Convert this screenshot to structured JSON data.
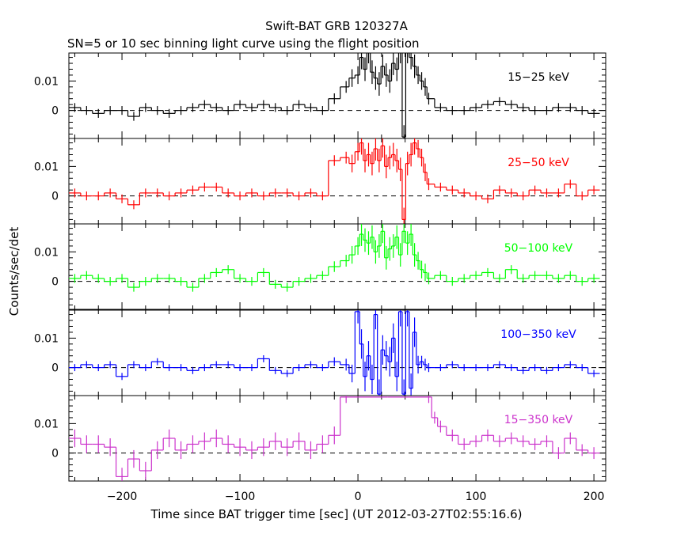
{
  "title": "Swift-BAT GRB 120327A",
  "subtitle": "SN=5 or 10 sec binning light curve using the flight position",
  "chart_data": {
    "type": "line",
    "title": "Swift-BAT GRB 120327A",
    "subtitle": "SN=5 or 10 sec binning light curve using the flight position",
    "xlabel": "Time since BAT trigger time [sec] (UT 2012-03-27T02:55:16.6)",
    "ylabel": "Counts/sec/det",
    "xlim": [
      -245,
      210
    ],
    "ylim": [
      -0.0095,
      0.0195
    ],
    "x_ticks": [
      -200,
      -100,
      0,
      100,
      200
    ],
    "x_tick_labels": [
      "−200",
      "−100",
      "0",
      "100",
      "200"
    ],
    "y_ticks": [
      0,
      0.01
    ],
    "y_tick_labels": [
      "0",
      "0.01"
    ],
    "zero_line": "dashed",
    "series": [
      {
        "name": "15−25 keV",
        "color": "#000000",
        "x": [
          -240,
          -230,
          -220,
          -210,
          -200,
          -190,
          -180,
          -170,
          -160,
          -150,
          -140,
          -130,
          -120,
          -110,
          -100,
          -90,
          -80,
          -70,
          -60,
          -50,
          -40,
          -30,
          -20,
          -10,
          -5,
          0,
          3,
          6,
          9,
          12,
          15,
          18,
          21,
          24,
          27,
          30,
          33,
          36,
          39,
          42,
          45,
          48,
          51,
          54,
          57,
          60,
          70,
          80,
          90,
          100,
          110,
          120,
          130,
          140,
          150,
          160,
          170,
          180,
          190,
          200
        ],
        "y": [
          0.001,
          0.0,
          -0.001,
          0.0,
          0.0,
          -0.002,
          0.001,
          0.0,
          -0.001,
          0.0,
          0.001,
          0.002,
          0.001,
          0.0,
          0.002,
          0.001,
          0.002,
          0.001,
          0.0,
          0.002,
          0.001,
          0.0,
          0.004,
          0.008,
          0.011,
          0.012,
          0.018,
          0.014,
          0.02,
          0.013,
          0.011,
          0.009,
          0.015,
          0.012,
          0.01,
          0.016,
          0.014,
          0.02,
          -0.009,
          0.02,
          0.018,
          0.015,
          0.012,
          0.01,
          0.008,
          0.004,
          0.001,
          0.0,
          0.0,
          0.001,
          0.002,
          0.003,
          0.002,
          0.001,
          0.0,
          0.0,
          0.001,
          0.001,
          0.0,
          -0.001
        ],
        "err": [
          0.0015,
          0.0015,
          0.0015,
          0.0015,
          0.0015,
          0.0015,
          0.0015,
          0.0015,
          0.0015,
          0.0015,
          0.0015,
          0.0015,
          0.0015,
          0.0015,
          0.0015,
          0.0015,
          0.0015,
          0.0015,
          0.0015,
          0.0015,
          0.0015,
          0.0015,
          0.0018,
          0.002,
          0.003,
          0.003,
          0.004,
          0.004,
          0.004,
          0.004,
          0.004,
          0.004,
          0.004,
          0.004,
          0.004,
          0.004,
          0.004,
          0.004,
          0.004,
          0.004,
          0.004,
          0.004,
          0.003,
          0.003,
          0.003,
          0.002,
          0.0015,
          0.0015,
          0.0015,
          0.0015,
          0.0015,
          0.0015,
          0.0015,
          0.0015,
          0.0015,
          0.0015,
          0.0015,
          0.0015,
          0.0015,
          0.0015
        ]
      },
      {
        "name": "25−50 keV",
        "color": "#ff0000",
        "x": [
          -240,
          -230,
          -220,
          -210,
          -200,
          -190,
          -180,
          -170,
          -160,
          -150,
          -140,
          -130,
          -120,
          -110,
          -100,
          -90,
          -80,
          -70,
          -60,
          -50,
          -40,
          -30,
          -20,
          -10,
          -5,
          0,
          3,
          6,
          9,
          12,
          15,
          18,
          21,
          24,
          27,
          30,
          33,
          36,
          39,
          42,
          45,
          48,
          51,
          54,
          57,
          60,
          70,
          80,
          90,
          100,
          110,
          120,
          130,
          140,
          150,
          160,
          170,
          180,
          190,
          200
        ],
        "y": [
          0.001,
          0.0,
          0.0,
          0.001,
          -0.001,
          -0.003,
          0.001,
          0.001,
          0.0,
          0.001,
          0.002,
          0.003,
          0.003,
          0.001,
          0.0,
          0.001,
          0.0,
          0.001,
          0.001,
          0.0,
          0.001,
          0.0,
          0.012,
          0.013,
          0.011,
          0.015,
          0.018,
          0.012,
          0.014,
          0.011,
          0.016,
          0.012,
          0.017,
          0.01,
          0.013,
          0.014,
          0.012,
          0.009,
          -0.008,
          0.011,
          0.014,
          0.018,
          0.016,
          0.013,
          0.008,
          0.004,
          0.003,
          0.002,
          0.001,
          0.0,
          -0.001,
          0.002,
          0.001,
          0.0,
          0.002,
          0.001,
          0.001,
          0.004,
          0.0,
          0.002
        ],
        "err": [
          0.0015,
          0.0015,
          0.0015,
          0.0015,
          0.0015,
          0.0015,
          0.0015,
          0.0015,
          0.0015,
          0.0015,
          0.0015,
          0.0015,
          0.0015,
          0.0015,
          0.0015,
          0.0015,
          0.0015,
          0.0015,
          0.0015,
          0.0015,
          0.0015,
          0.0015,
          0.0018,
          0.002,
          0.003,
          0.003,
          0.004,
          0.004,
          0.004,
          0.004,
          0.004,
          0.004,
          0.004,
          0.004,
          0.004,
          0.004,
          0.004,
          0.004,
          0.004,
          0.004,
          0.004,
          0.004,
          0.003,
          0.003,
          0.003,
          0.002,
          0.0015,
          0.0015,
          0.0015,
          0.0015,
          0.0015,
          0.0015,
          0.0015,
          0.0015,
          0.0015,
          0.0015,
          0.0015,
          0.0015,
          0.0015,
          0.0015
        ]
      },
      {
        "name": "50−100 keV",
        "color": "#00ff00",
        "x": [
          -240,
          -230,
          -220,
          -210,
          -200,
          -190,
          -180,
          -170,
          -160,
          -150,
          -140,
          -130,
          -120,
          -110,
          -100,
          -90,
          -80,
          -70,
          -60,
          -50,
          -40,
          -30,
          -20,
          -10,
          -5,
          0,
          3,
          6,
          9,
          12,
          15,
          18,
          21,
          24,
          27,
          30,
          33,
          36,
          39,
          42,
          45,
          48,
          51,
          54,
          57,
          60,
          70,
          80,
          90,
          100,
          110,
          120,
          130,
          140,
          150,
          160,
          170,
          180,
          190,
          200
        ],
        "y": [
          0.001,
          0.002,
          0.001,
          0.0,
          0.001,
          -0.002,
          0.0,
          0.001,
          0.001,
          0.0,
          -0.002,
          0.001,
          0.003,
          0.004,
          0.001,
          0.0,
          0.003,
          -0.001,
          -0.002,
          0.0,
          0.001,
          0.002,
          0.005,
          0.007,
          0.009,
          0.012,
          0.016,
          0.014,
          0.013,
          0.015,
          0.01,
          0.012,
          0.017,
          0.008,
          0.011,
          0.012,
          0.015,
          0.009,
          0.017,
          0.013,
          0.016,
          0.009,
          0.007,
          0.004,
          0.003,
          0.001,
          0.002,
          0.0,
          0.001,
          0.002,
          0.003,
          0.001,
          0.004,
          0.001,
          0.002,
          0.002,
          0.001,
          0.002,
          0.0,
          0.001
        ],
        "err": [
          0.0015,
          0.0015,
          0.0015,
          0.0015,
          0.0015,
          0.0015,
          0.0015,
          0.0015,
          0.0015,
          0.0015,
          0.0015,
          0.0015,
          0.0015,
          0.0015,
          0.0015,
          0.0015,
          0.0015,
          0.0015,
          0.0015,
          0.0015,
          0.0015,
          0.0015,
          0.0018,
          0.002,
          0.003,
          0.003,
          0.004,
          0.004,
          0.004,
          0.004,
          0.004,
          0.004,
          0.004,
          0.004,
          0.004,
          0.004,
          0.004,
          0.004,
          0.004,
          0.004,
          0.004,
          0.004,
          0.003,
          0.003,
          0.003,
          0.002,
          0.0015,
          0.0015,
          0.0015,
          0.0015,
          0.0015,
          0.0015,
          0.0015,
          0.0015,
          0.0015,
          0.0015,
          0.0015,
          0.0015,
          0.0015,
          0.0015
        ]
      },
      {
        "name": "100−350 keV",
        "color": "#0000ff",
        "x": [
          -240,
          -230,
          -220,
          -210,
          -200,
          -190,
          -180,
          -170,
          -160,
          -150,
          -140,
          -130,
          -120,
          -110,
          -100,
          -90,
          -80,
          -70,
          -60,
          -50,
          -40,
          -30,
          -20,
          -10,
          -5,
          0,
          3,
          6,
          9,
          12,
          15,
          18,
          21,
          24,
          27,
          30,
          33,
          36,
          39,
          42,
          45,
          48,
          51,
          54,
          57,
          60,
          70,
          80,
          90,
          100,
          110,
          120,
          130,
          140,
          150,
          160,
          170,
          180,
          190,
          200
        ],
        "y": [
          0.0,
          0.001,
          0.0,
          0.001,
          -0.003,
          0.001,
          0.0,
          0.002,
          0.0,
          0.0,
          -0.001,
          0.0,
          0.001,
          0.001,
          0.0,
          0.0,
          0.003,
          -0.001,
          -0.002,
          0.0,
          0.001,
          0.0,
          0.002,
          0.001,
          -0.002,
          0.019,
          0.008,
          -0.003,
          0.004,
          -0.004,
          0.018,
          -0.009,
          0.006,
          0.004,
          0.002,
          0.01,
          -0.003,
          0.019,
          -0.009,
          0.019,
          -0.007,
          0.012,
          0.001,
          0.002,
          0.001,
          0.0,
          0.0,
          0.001,
          0.0,
          0.0,
          0.0,
          0.001,
          0.0,
          -0.001,
          0.0,
          -0.001,
          0.0,
          0.001,
          0.0,
          -0.002
        ],
        "err": [
          0.0012,
          0.0012,
          0.0012,
          0.0012,
          0.0012,
          0.0012,
          0.0012,
          0.0012,
          0.0012,
          0.0012,
          0.0012,
          0.0012,
          0.0012,
          0.0012,
          0.0012,
          0.0012,
          0.0012,
          0.0012,
          0.0012,
          0.0012,
          0.0012,
          0.0012,
          0.0015,
          0.002,
          0.003,
          0.004,
          0.005,
          0.005,
          0.005,
          0.005,
          0.005,
          0.005,
          0.005,
          0.005,
          0.005,
          0.005,
          0.005,
          0.005,
          0.005,
          0.005,
          0.005,
          0.005,
          0.003,
          0.002,
          0.002,
          0.0015,
          0.0012,
          0.0012,
          0.0012,
          0.0012,
          0.0012,
          0.0012,
          0.0012,
          0.0012,
          0.0012,
          0.0012,
          0.0012,
          0.0012,
          0.0012,
          0.0012
        ]
      },
      {
        "name": "15−350 keV",
        "color": "#cc33cc",
        "x": [
          -240,
          -230,
          -220,
          -210,
          -200,
          -190,
          -180,
          -170,
          -160,
          -150,
          -140,
          -130,
          -120,
          -110,
          -100,
          -90,
          -80,
          -70,
          -60,
          -50,
          -40,
          -30,
          -20,
          -10,
          60,
          65,
          70,
          80,
          90,
          100,
          110,
          120,
          130,
          140,
          150,
          160,
          170,
          180,
          190,
          200
        ],
        "y": [
          0.005,
          0.003,
          0.003,
          0.002,
          -0.008,
          -0.002,
          -0.006,
          0.001,
          0.005,
          0.001,
          0.003,
          0.004,
          0.005,
          0.003,
          0.002,
          0.001,
          0.002,
          0.004,
          0.002,
          0.004,
          0.001,
          0.003,
          0.006,
          0.019,
          0.019,
          0.012,
          0.009,
          0.006,
          0.003,
          0.004,
          0.006,
          0.004,
          0.005,
          0.004,
          0.003,
          0.004,
          0.0,
          0.005,
          0.001,
          0.0
        ],
        "err": [
          0.003,
          0.003,
          0.003,
          0.003,
          0.003,
          0.003,
          0.003,
          0.003,
          0.003,
          0.003,
          0.003,
          0.003,
          0.003,
          0.003,
          0.003,
          0.003,
          0.003,
          0.003,
          0.003,
          0.003,
          0.003,
          0.003,
          0.003,
          0.002,
          0.002,
          0.002,
          0.002,
          0.002,
          0.002,
          0.002,
          0.002,
          0.002,
          0.002,
          0.002,
          0.002,
          0.002,
          0.002,
          0.002,
          0.002,
          0.002
        ]
      }
    ]
  }
}
